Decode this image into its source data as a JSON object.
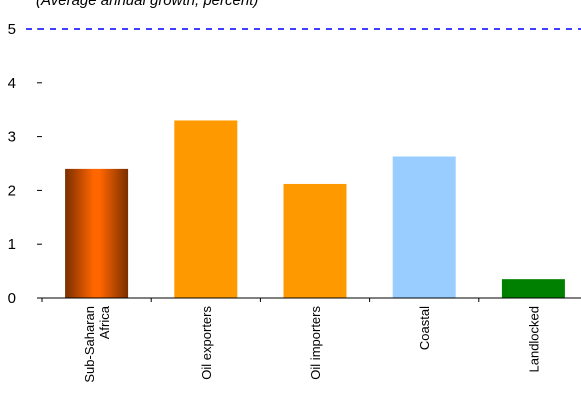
{
  "chart_data": {
    "type": "bar",
    "subtitle": "(Average annual growth, percent)",
    "categories": [
      "Sub-Saharan Africa",
      "Oil exporters",
      "Oil importers",
      "Coastal",
      "Landlocked"
    ],
    "category_label_lines": [
      [
        "Sub-Saharan",
        "Africa"
      ],
      [
        "Oil exporters"
      ],
      [
        "Oil importers"
      ],
      [
        "Coastal"
      ],
      [
        "Landlocked"
      ]
    ],
    "values": [
      2.4,
      3.3,
      2.12,
      2.63,
      0.35
    ],
    "bar_colors": [
      "gradient-brown-orange",
      "#FF9900",
      "#FF9900",
      "#99CCFF",
      "#008000"
    ],
    "ylim": [
      0,
      5
    ],
    "yticks": [
      0,
      1,
      2,
      3,
      4,
      5
    ],
    "reference_line": {
      "value": 5,
      "style": "dashed",
      "color": "#0000FF"
    },
    "grid": false
  }
}
